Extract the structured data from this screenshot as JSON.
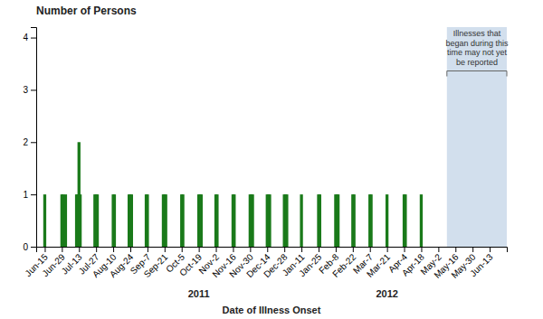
{
  "chart_data": {
    "type": "bar",
    "title": "Number of Persons",
    "x_label": "Date of Illness Onset",
    "x": [
      0,
      14,
      15,
      17,
      26,
      27,
      28,
      29,
      41,
      42,
      43,
      56,
      57,
      69,
      70,
      71,
      83,
      84,
      97,
      98,
      99,
      112,
      113,
      126,
      127,
      128,
      140,
      141,
      154,
      155,
      168,
      169,
      170,
      182,
      183,
      184,
      196,
      197,
      198,
      210,
      224,
      225,
      238,
      239,
      240,
      252,
      253,
      266,
      267,
      280,
      294,
      295,
      308
    ],
    "values": [
      1,
      1,
      1,
      1,
      1,
      1,
      2,
      1,
      1,
      1,
      1,
      1,
      1,
      1,
      1,
      1,
      1,
      1,
      1,
      1,
      1,
      1,
      1,
      1,
      1,
      1,
      1,
      1,
      1,
      1,
      1,
      1,
      1,
      1,
      1,
      1,
      1,
      1,
      1,
      1,
      1,
      1,
      1,
      1,
      1,
      1,
      1,
      1,
      1,
      1,
      1,
      1,
      1
    ],
    "color": "#1a7a1a",
    "xlim": [
      -7,
      378
    ],
    "xticks": [
      {
        "value": 0,
        "label": "Jun-15"
      },
      {
        "value": 14,
        "label": "Jun-29"
      },
      {
        "value": 28,
        "label": "Jul-13"
      },
      {
        "value": 42,
        "label": "Jul-27"
      },
      {
        "value": 56,
        "label": "Aug-10"
      },
      {
        "value": 70,
        "label": "Aug-24"
      },
      {
        "value": 84,
        "label": "Sep-7"
      },
      {
        "value": 98,
        "label": "Sep-21"
      },
      {
        "value": 112,
        "label": "Oct-5"
      },
      {
        "value": 126,
        "label": "Oct-19"
      },
      {
        "value": 140,
        "label": "Nov-2"
      },
      {
        "value": 154,
        "label": "Nov-16"
      },
      {
        "value": 168,
        "label": "Nov-30"
      },
      {
        "value": 182,
        "label": "Dec-14"
      },
      {
        "value": 196,
        "label": "Dec-28"
      },
      {
        "value": 210,
        "label": "Jan-11"
      },
      {
        "value": 224,
        "label": "Jan-25"
      },
      {
        "value": 238,
        "label": "Feb-8"
      },
      {
        "value": 252,
        "label": "Feb-22"
      },
      {
        "value": 266,
        "label": "Mar-7"
      },
      {
        "value": 280,
        "label": "Mar-21"
      },
      {
        "value": 294,
        "label": "Apr-4"
      },
      {
        "value": 308,
        "label": "Apr-18"
      },
      {
        "value": 322,
        "label": "May-2"
      },
      {
        "value": 336,
        "label": "May-16"
      },
      {
        "value": 350,
        "label": "May-30"
      },
      {
        "value": 364,
        "label": "Jun-13"
      }
    ],
    "ylim": [
      0,
      4.2
    ],
    "yticks": [
      0,
      1,
      2,
      3,
      4
    ],
    "grid": false,
    "annotations": [
      {
        "text": "Illnesses that\nbegan during this\ntime may not yet\nbe reported",
        "x": [
          329,
          378
        ],
        "color": "#adc4de"
      },
      {
        "text": "2011",
        "x": 126
      },
      {
        "text": "2012",
        "x": 280
      }
    ]
  }
}
